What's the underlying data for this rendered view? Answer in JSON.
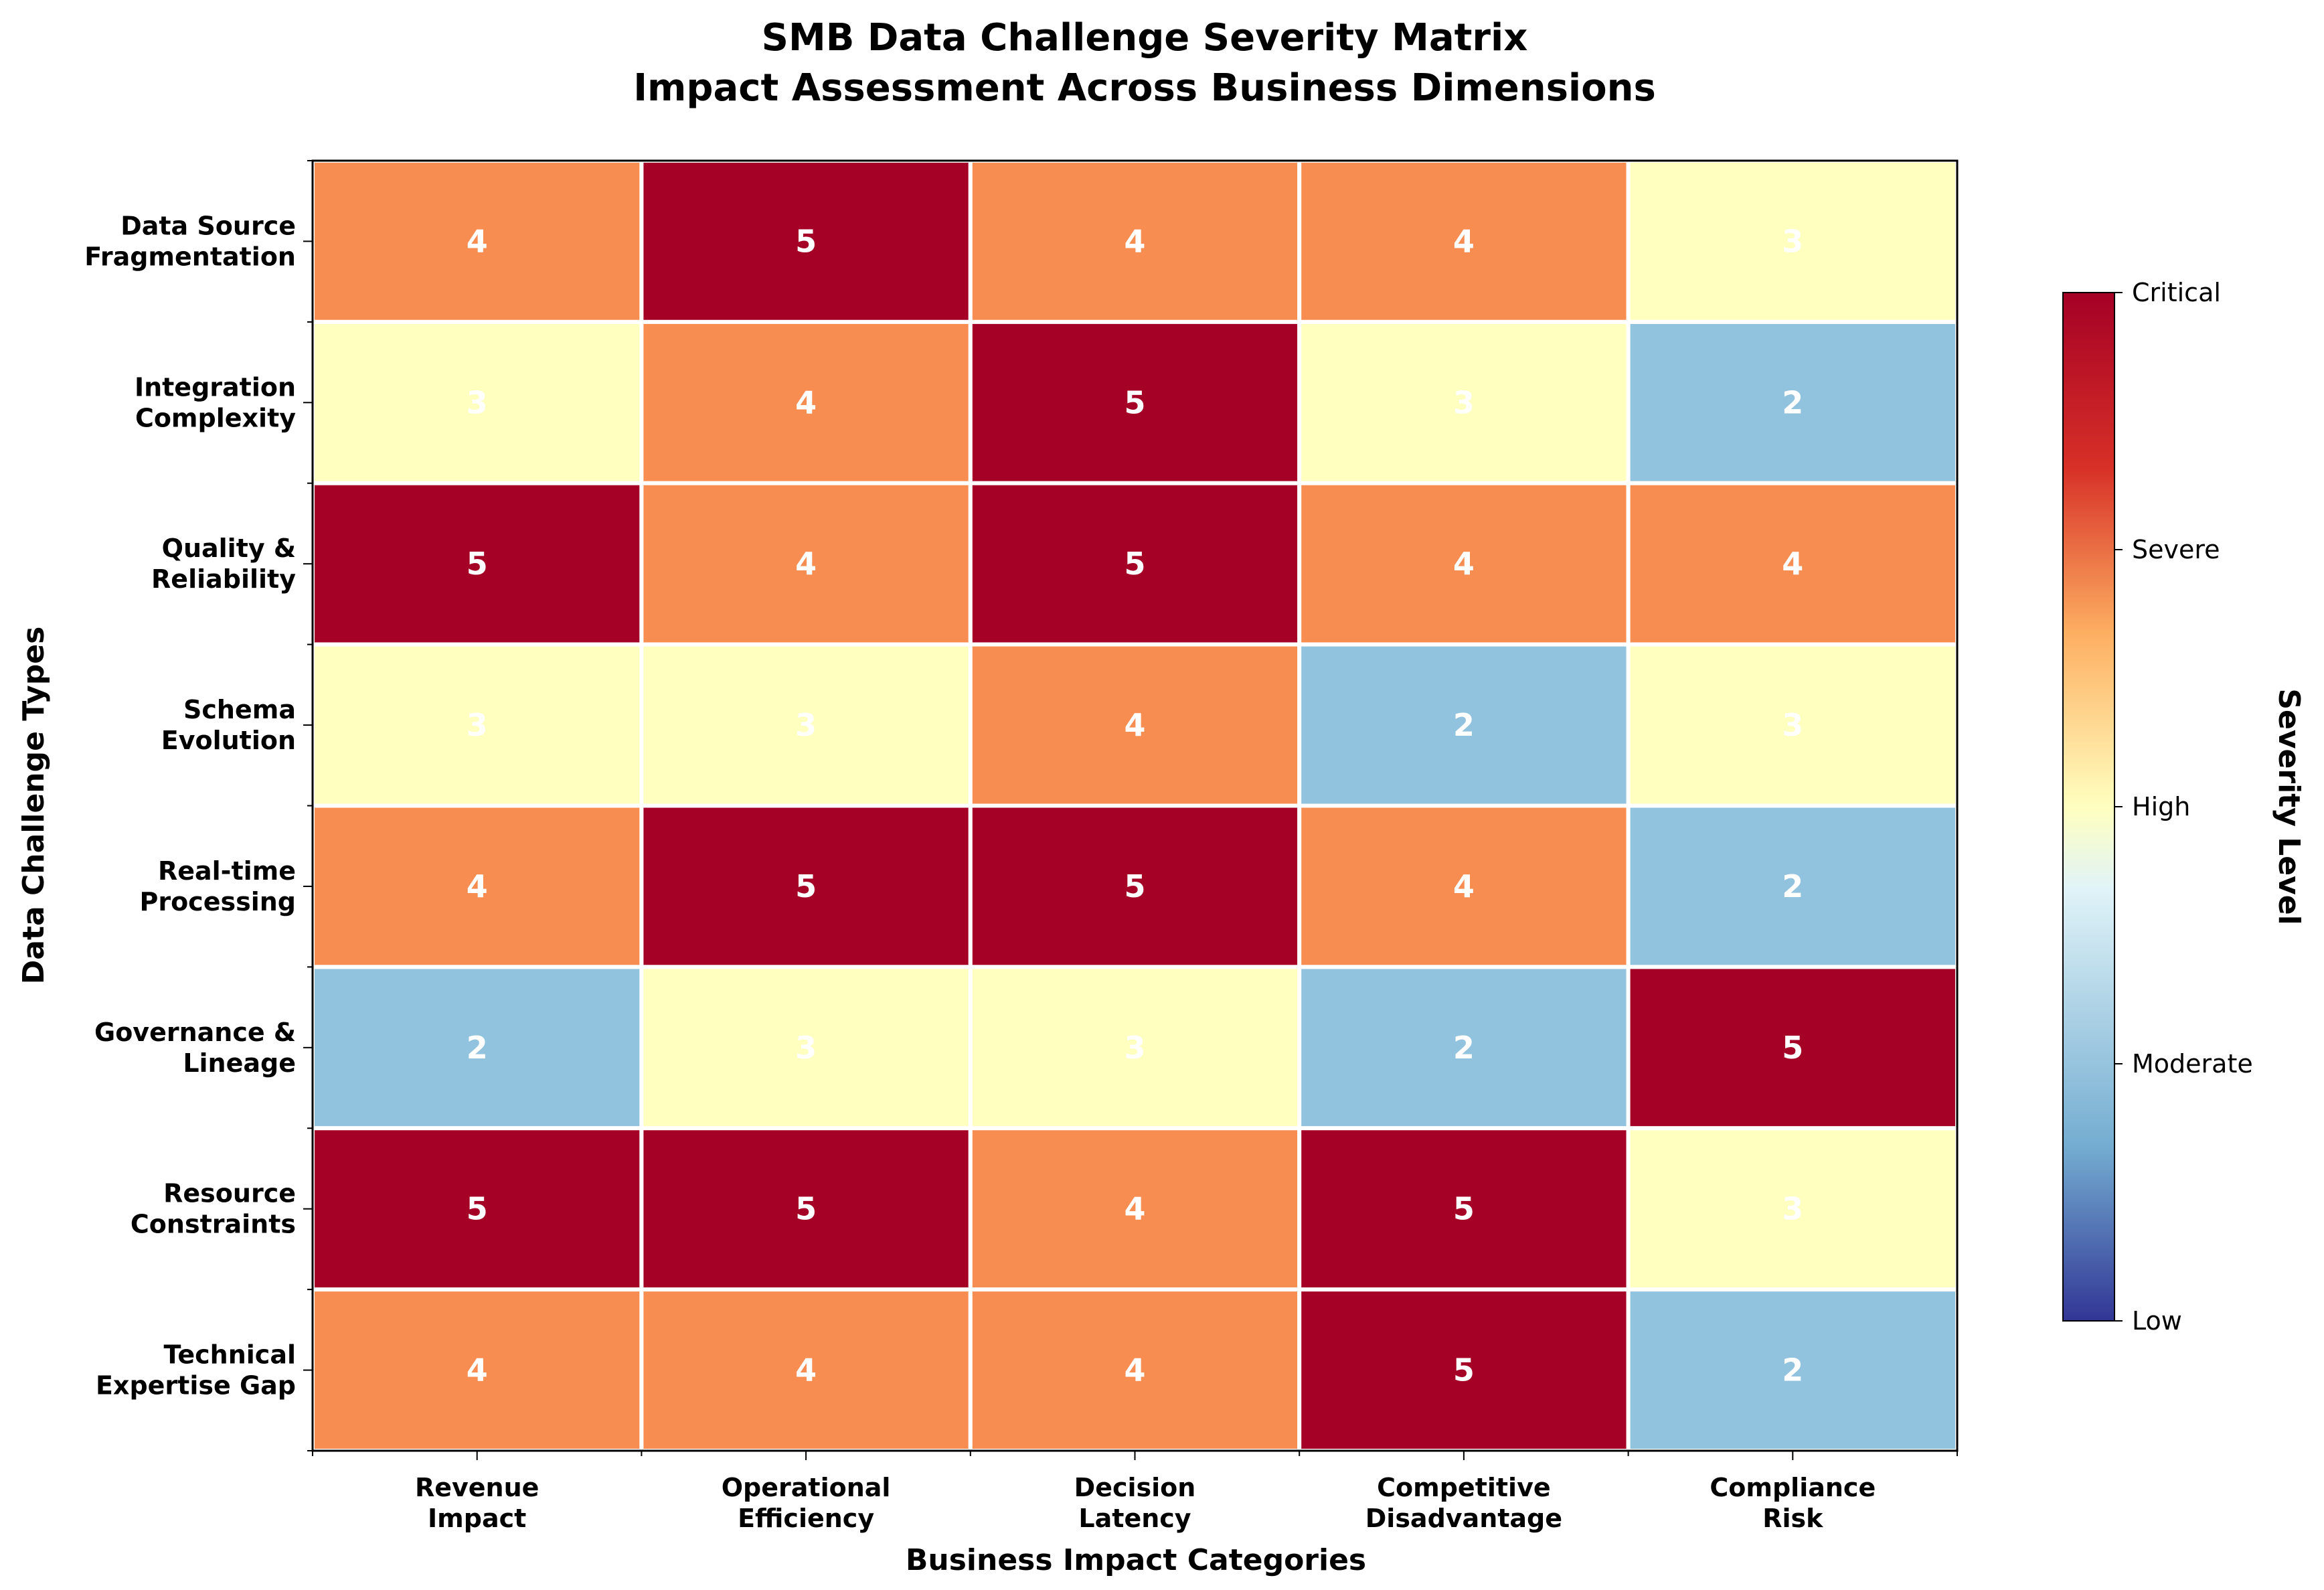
{
  "chart_data": {
    "type": "heatmap",
    "title": "SMB Data Challenge Severity Matrix",
    "subtitle": "Impact Assessment Across Business Dimensions",
    "xlabel": "Business Impact Categories",
    "ylabel": "Data Challenge Types",
    "x_categories": [
      [
        "Revenue",
        "Impact"
      ],
      [
        "Operational",
        "Efficiency"
      ],
      [
        "Decision",
        "Latency"
      ],
      [
        "Competitive",
        "Disadvantage"
      ],
      [
        "Compliance",
        "Risk"
      ]
    ],
    "y_categories": [
      [
        "Data Source",
        "Fragmentation"
      ],
      [
        "Integration",
        "Complexity"
      ],
      [
        "Quality &",
        "Reliability"
      ],
      [
        "Schema",
        "Evolution"
      ],
      [
        "Real-time",
        "Processing"
      ],
      [
        "Governance &",
        "Lineage"
      ],
      [
        "Resource",
        "Constraints"
      ],
      [
        "Technical",
        "Expertise Gap"
      ]
    ],
    "values": [
      [
        4,
        5,
        4,
        4,
        3
      ],
      [
        3,
        4,
        5,
        3,
        2
      ],
      [
        5,
        4,
        5,
        4,
        4
      ],
      [
        3,
        3,
        4,
        2,
        3
      ],
      [
        4,
        5,
        5,
        4,
        2
      ],
      [
        2,
        3,
        3,
        2,
        5
      ],
      [
        5,
        5,
        4,
        5,
        3
      ],
      [
        4,
        4,
        4,
        5,
        2
      ]
    ],
    "colorbar": {
      "label": "Severity Level",
      "ticks": [
        "Low",
        "Moderate",
        "High",
        "Severe",
        "Critical"
      ],
      "range": [
        1,
        5
      ],
      "stops": [
        "#313695",
        "#74add1",
        "#e0f3f8",
        "#ffffbf",
        "#fdae61",
        "#d73027",
        "#a50026"
      ]
    },
    "cell_colors": {
      "2": "#91c2de",
      "3": "#ffffc0",
      "4": "#f88d52",
      "5": "#a50026"
    }
  }
}
